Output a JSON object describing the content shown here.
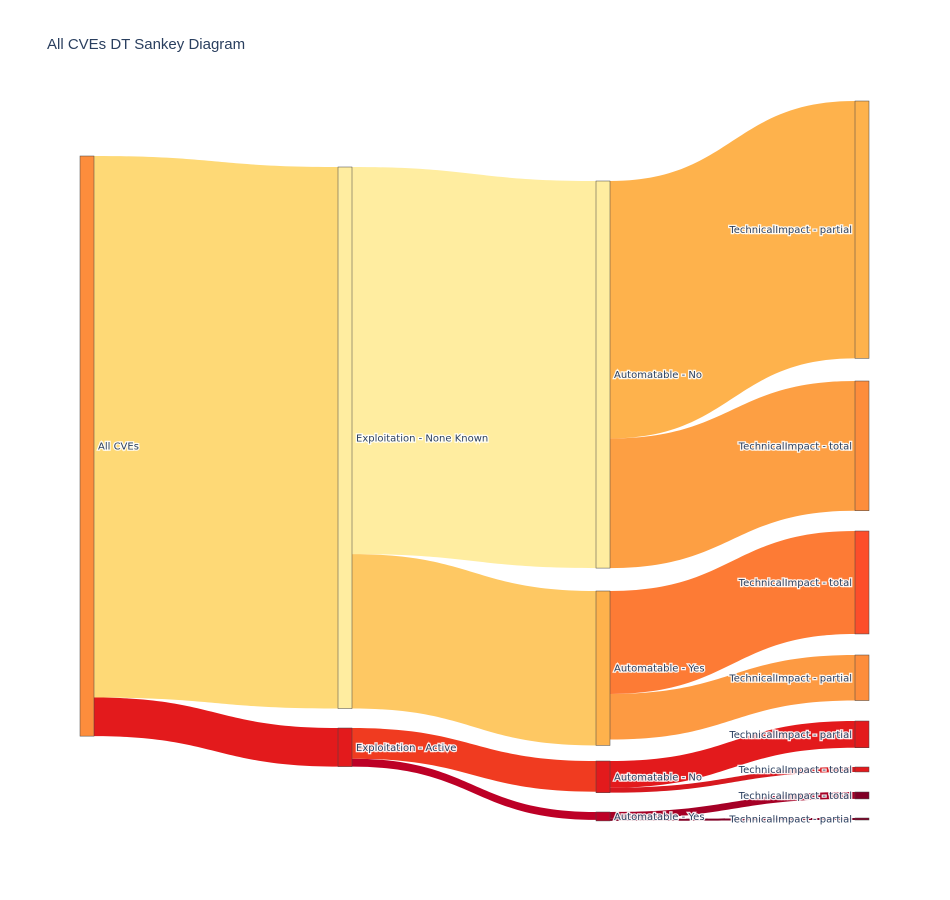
{
  "chart_data": {
    "type": "sankey",
    "title": "All CVEs DT Sankey Diagram",
    "nodes": [
      {
        "id": "all",
        "label": "All CVEs",
        "color": "#fd8d3c"
      },
      {
        "id": "expl_none",
        "label": "Exploitation - None Known",
        "color": "#ffeda0"
      },
      {
        "id": "expl_active",
        "label": "Exploitation - Active",
        "color": "#e31a1c"
      },
      {
        "id": "auto_no_1",
        "label": "Automatable - No",
        "color": "#ffeda0"
      },
      {
        "id": "auto_yes_1",
        "label": "Automatable - Yes",
        "color": "#feb24c"
      },
      {
        "id": "auto_no_2",
        "label": "Automatable - No",
        "color": "#e31a1c"
      },
      {
        "id": "auto_yes_2",
        "label": "Automatable - Yes",
        "color": "#bd0026"
      },
      {
        "id": "ti_partial_1",
        "label": "TechnicalImpact - partial",
        "color": "#feb24c"
      },
      {
        "id": "ti_total_1",
        "label": "TechnicalImpact - total",
        "color": "#fd8d3c"
      },
      {
        "id": "ti_total_2",
        "label": "TechnicalImpact - total",
        "color": "#fc4e2a"
      },
      {
        "id": "ti_partial_2",
        "label": "TechnicalImpact - partial",
        "color": "#fd8d3c"
      },
      {
        "id": "ti_partial_3",
        "label": "TechnicalImpact - partial",
        "color": "#e31a1c"
      },
      {
        "id": "ti_total_3",
        "label": "TechnicalImpact - total",
        "color": "#e31a1c"
      },
      {
        "id": "ti_total_4",
        "label": "TechnicalImpact - total",
        "color": "#800026"
      },
      {
        "id": "ti_partial_4",
        "label": "TechnicalImpact - partial",
        "color": "#800026"
      }
    ],
    "links": [
      {
        "source": "all",
        "target": "expl_none",
        "value": 547,
        "color": "#fed976"
      },
      {
        "source": "all",
        "target": "expl_active",
        "value": 39,
        "color": "#e31a1c"
      },
      {
        "source": "expl_none",
        "target": "auto_no_1",
        "value": 391,
        "color": "#ffeda0"
      },
      {
        "source": "expl_none",
        "target": "auto_yes_1",
        "value": 156,
        "color": "#fec863"
      },
      {
        "source": "expl_active",
        "target": "auto_no_2",
        "value": 31,
        "color": "#f03b20"
      },
      {
        "source": "expl_active",
        "target": "auto_yes_2",
        "value": 8,
        "color": "#bd0026"
      },
      {
        "source": "auto_no_1",
        "target": "ti_partial_1",
        "value": 260,
        "color": "#feb24c"
      },
      {
        "source": "auto_no_1",
        "target": "ti_total_1",
        "value": 131,
        "color": "#fd9f43"
      },
      {
        "source": "auto_yes_1",
        "target": "ti_total_2",
        "value": 104,
        "color": "#fd7b35"
      },
      {
        "source": "auto_yes_1",
        "target": "ti_partial_2",
        "value": 46,
        "color": "#fd9a42"
      },
      {
        "source": "auto_no_2",
        "target": "ti_partial_3",
        "value": 27,
        "color": "#e31a1c"
      },
      {
        "source": "auto_no_2",
        "target": "ti_total_3",
        "value": 5,
        "color": "#d7191f"
      },
      {
        "source": "auto_yes_2",
        "target": "ti_total_4",
        "value": 7,
        "color": "#a50026"
      },
      {
        "source": "auto_yes_2",
        "target": "ti_partial_4",
        "value": 2,
        "color": "#800026"
      }
    ]
  }
}
